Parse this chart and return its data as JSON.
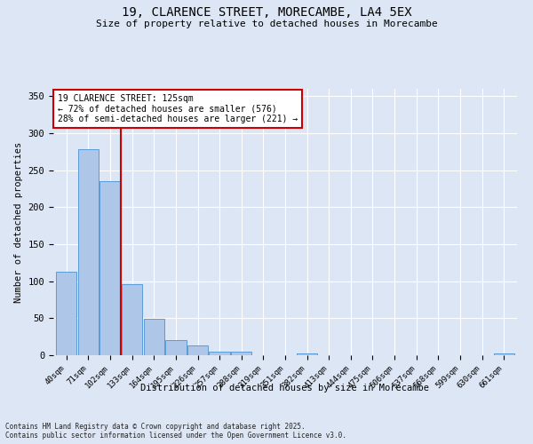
{
  "title_line1": "19, CLARENCE STREET, MORECAMBE, LA4 5EX",
  "title_line2": "Size of property relative to detached houses in Morecambe",
  "xlabel": "Distribution of detached houses by size in Morecambe",
  "ylabel": "Number of detached properties",
  "categories": [
    "40sqm",
    "71sqm",
    "102sqm",
    "133sqm",
    "164sqm",
    "195sqm",
    "226sqm",
    "257sqm",
    "288sqm",
    "319sqm",
    "351sqm",
    "382sqm",
    "413sqm",
    "444sqm",
    "475sqm",
    "506sqm",
    "537sqm",
    "568sqm",
    "599sqm",
    "630sqm",
    "661sqm"
  ],
  "values": [
    113,
    278,
    235,
    96,
    49,
    21,
    13,
    5,
    5,
    0,
    0,
    3,
    0,
    0,
    0,
    0,
    0,
    0,
    0,
    0,
    2
  ],
  "bar_color": "#aec6e8",
  "bar_edge_color": "#5b9bd5",
  "vline_x_index": 2.5,
  "vline_color": "#cc0000",
  "annotation_title": "19 CLARENCE STREET: 125sqm",
  "annotation_line2": "← 72% of detached houses are smaller (576)",
  "annotation_line3": "28% of semi-detached houses are larger (221) →",
  "annotation_box_color": "#cc0000",
  "annotation_bg": "#ffffff",
  "ylim": [
    0,
    360
  ],
  "yticks": [
    0,
    50,
    100,
    150,
    200,
    250,
    300,
    350
  ],
  "background_color": "#dce6f5",
  "grid_color": "#ffffff",
  "footer_line1": "Contains HM Land Registry data © Crown copyright and database right 2025.",
  "footer_line2": "Contains public sector information licensed under the Open Government Licence v3.0."
}
